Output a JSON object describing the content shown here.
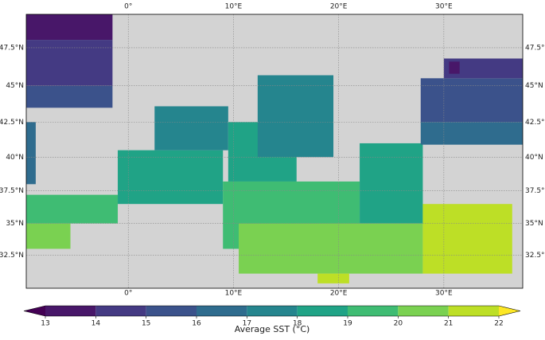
{
  "map": {
    "projection": "mercator",
    "xlim": [
      -9.7,
      37.5
    ],
    "ylim": [
      29.8,
      49.6
    ],
    "grid": true,
    "land_color": "#d3d3d3",
    "lon_ticks": [
      {
        "value": 0,
        "label": "0°"
      },
      {
        "value": 10,
        "label": "10°E"
      },
      {
        "value": 20,
        "label": "20°E"
      },
      {
        "value": 30,
        "label": "30°E"
      }
    ],
    "lat_ticks": [
      {
        "value": 32.5,
        "label": "32.5°N"
      },
      {
        "value": 35,
        "label": "35°N"
      },
      {
        "value": 37.5,
        "label": "37.5°N"
      },
      {
        "value": 40,
        "label": "40°N"
      },
      {
        "value": 42.5,
        "label": "42.5°N"
      },
      {
        "value": 45,
        "label": "45°N"
      },
      {
        "value": 47.5,
        "label": "47.5°N"
      }
    ],
    "sst_cells": [
      {
        "lon": [
          -9.7,
          -1.5
        ],
        "lat": [
          48.0,
          49.6
        ],
        "value": 13.5
      },
      {
        "lon": [
          -9.7,
          -1.5
        ],
        "lat": [
          45.0,
          48.0
        ],
        "value": 14.5
      },
      {
        "lon": [
          -9.7,
          -1.5
        ],
        "lat": [
          43.5,
          45.0
        ],
        "value": 15.5
      },
      {
        "lon": [
          -9.7,
          -8.8
        ],
        "lat": [
          38.0,
          42.5
        ],
        "value": 16.5
      },
      {
        "lon": [
          -9.7,
          -1.0
        ],
        "lat": [
          35.0,
          37.2
        ],
        "value": 19.5
      },
      {
        "lon": [
          -9.7,
          -5.5
        ],
        "lat": [
          33.0,
          35.0
        ],
        "value": 20.5
      },
      {
        "lon": [
          -1.0,
          9.0
        ],
        "lat": [
          36.5,
          40.5
        ],
        "value": 18.5
      },
      {
        "lon": [
          2.5,
          9.5
        ],
        "lat": [
          40.5,
          43.6
        ],
        "value": 17.5
      },
      {
        "lon": [
          9.5,
          16.0
        ],
        "lat": [
          38.2,
          42.5
        ],
        "value": 18.5
      },
      {
        "lon": [
          12.3,
          19.5
        ],
        "lat": [
          40.0,
          45.7
        ],
        "value": 17.5
      },
      {
        "lon": [
          9.0,
          22.0
        ],
        "lat": [
          33.0,
          38.2
        ],
        "value": 19.5
      },
      {
        "lon": [
          22.0,
          28.0
        ],
        "lat": [
          35.0,
          41.0
        ],
        "value": 18.5
      },
      {
        "lon": [
          10.5,
          28.0
        ],
        "lat": [
          31.0,
          35.0
        ],
        "value": 20.5
      },
      {
        "lon": [
          28.0,
          36.5
        ],
        "lat": [
          31.0,
          36.5
        ],
        "value": 21.5
      },
      {
        "lon": [
          18.0,
          21.0
        ],
        "lat": [
          30.2,
          31.0
        ],
        "value": 21.5
      },
      {
        "lon": [
          27.8,
          37.5
        ],
        "lat": [
          40.9,
          42.5
        ],
        "value": 16.5
      },
      {
        "lon": [
          27.8,
          37.5
        ],
        "lat": [
          42.5,
          45.5
        ],
        "value": 15.5
      },
      {
        "lon": [
          30.0,
          37.5
        ],
        "lat": [
          45.5,
          46.8
        ],
        "value": 14.5
      },
      {
        "lon": [
          30.5,
          31.5
        ],
        "lat": [
          45.8,
          46.6
        ],
        "value": 13.5
      }
    ],
    "colorbar": {
      "label": "Average SST (°C)",
      "ticks": [
        13,
        14,
        15,
        16,
        17,
        18,
        19,
        20,
        21,
        22
      ],
      "colors": [
        "#481769",
        "#443a83",
        "#3b528b",
        "#2f6c8e",
        "#25858e",
        "#20a386",
        "#3fbc73",
        "#7ad151",
        "#bddf26"
      ],
      "under_color": "#440154",
      "over_color": "#fde725"
    }
  }
}
